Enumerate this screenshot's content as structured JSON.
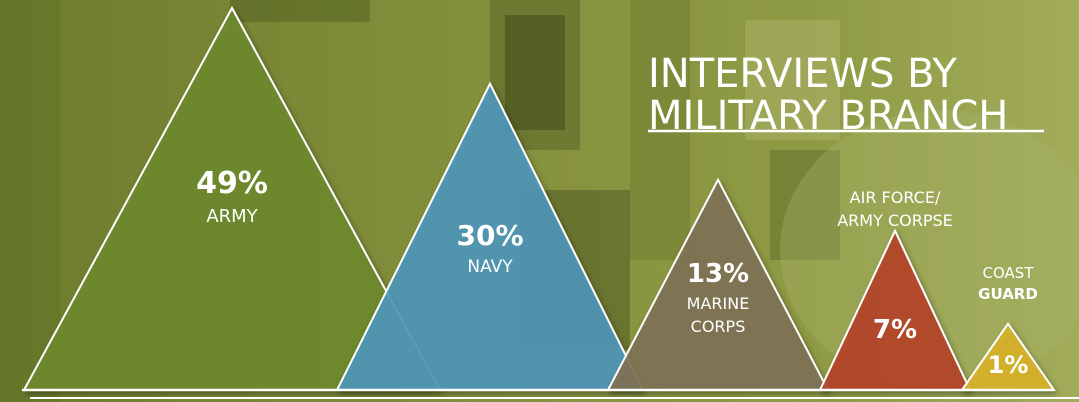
{
  "chart_data": {
    "type": "bar",
    "title": [
      "INTERVIEWS BY",
      "MILITARY BRANCH"
    ],
    "categories": [
      [
        "ARMY"
      ],
      [
        "NAVY"
      ],
      [
        "MARINE",
        "CORPS"
      ],
      [
        "AIR FORCE/",
        "ARMY CORPSE"
      ],
      [
        "COAST",
        "GUARD"
      ]
    ],
    "values": [
      49,
      30,
      13,
      7,
      1
    ],
    "value_labels": [
      "49%",
      "30%",
      "13%",
      "7%",
      "1%"
    ],
    "colors": [
      "#6f8a2e",
      "#4f97b9",
      "#7f7254",
      "#b5432a",
      "#d9b22a"
    ]
  }
}
